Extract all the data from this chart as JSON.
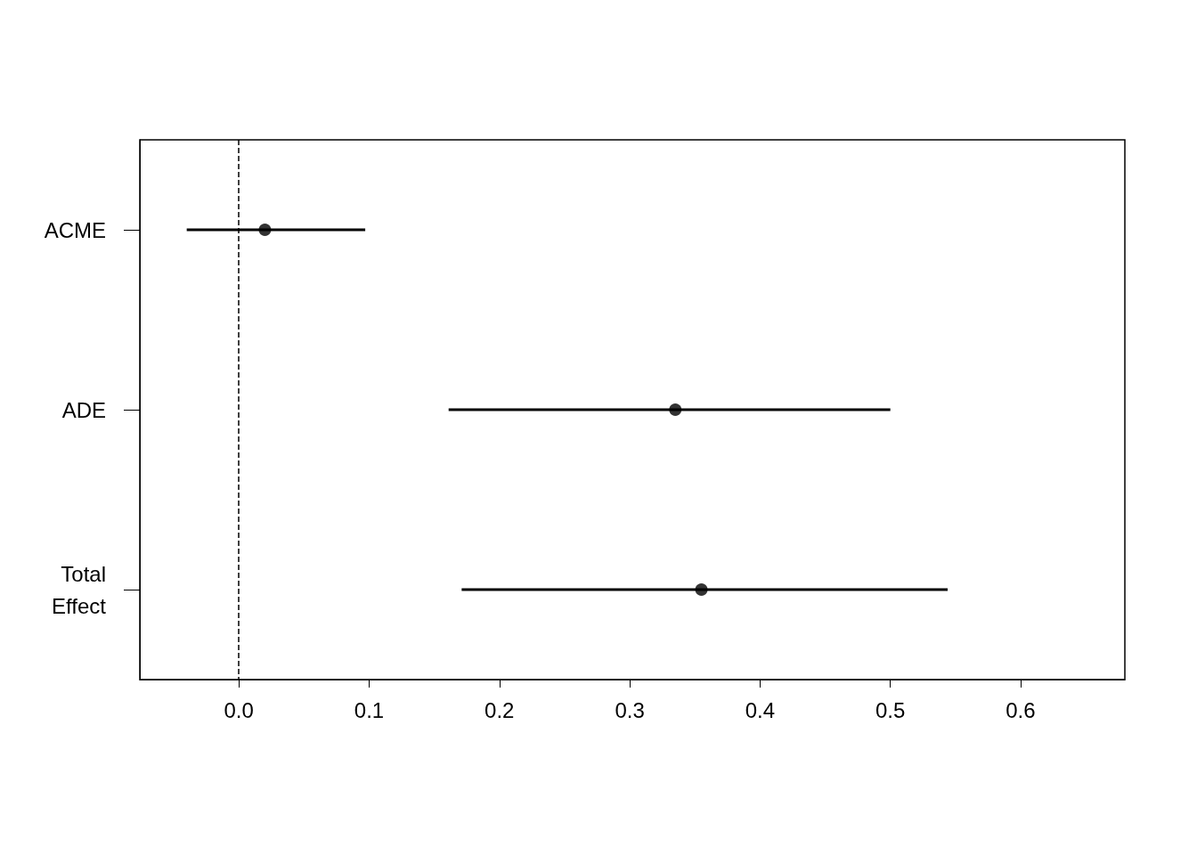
{
  "chart_data": {
    "type": "scatter",
    "orientation": "horizontal",
    "categories": [
      "ACME",
      "ADE",
      "Total\nEffect"
    ],
    "values": [
      0.02,
      0.335,
      0.355
    ],
    "errors": [
      [
        -0.04,
        0.097
      ],
      [
        0.161,
        0.5
      ],
      [
        0.171,
        0.544
      ]
    ],
    "color": "#000000",
    "marker": "circle",
    "xlim": [
      -0.076,
      0.68
    ],
    "xticks": [
      {
        "value": 0,
        "label": "0.0"
      },
      0.1,
      0.2,
      0.3,
      0.4,
      0.5,
      0.6
    ],
    "ref_lines": [
      {
        "axis": "x",
        "value": 0,
        "line_style": "dashed"
      }
    ]
  }
}
